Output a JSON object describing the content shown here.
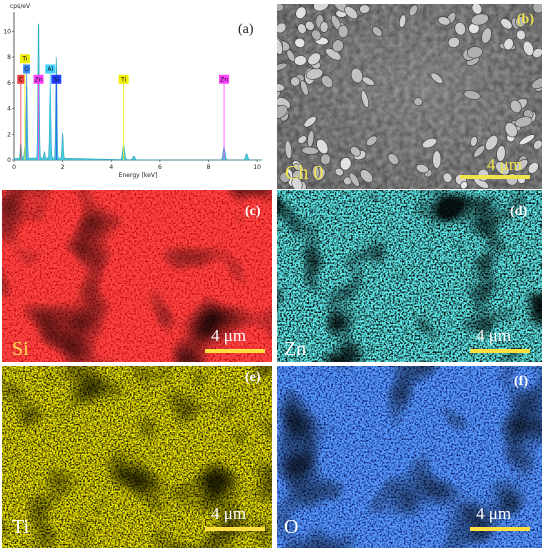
{
  "panel_a": {
    "label": "(a)",
    "y_axis_label": "cps/eV",
    "x_axis_label": "Energy [keV]",
    "colors": {
      "spectrum_fill": "#3fc3d6",
      "spectrum_line": "#2aa7bd"
    }
  },
  "chart_data": {
    "type": "line",
    "xlim": [
      0,
      10.2
    ],
    "ylim": [
      0,
      11.5
    ],
    "x_ticks": [
      "0",
      "2",
      "4",
      "6",
      "8",
      "10"
    ],
    "y_ticks": [
      "0",
      "2",
      "4",
      "6",
      "8",
      "10"
    ],
    "xlabel": "Energy [keV]",
    "ylabel": "cps/eV",
    "peaks": [
      {
        "x": 0.28,
        "y": 1.2
      },
      {
        "x": 0.45,
        "y": 0.9
      },
      {
        "x": 0.52,
        "y": 6.0
      },
      {
        "x": 1.01,
        "y": 11.3
      },
      {
        "x": 1.25,
        "y": 0.5
      },
      {
        "x": 1.49,
        "y": 5.8
      },
      {
        "x": 1.74,
        "y": 8.1
      },
      {
        "x": 2.0,
        "y": 2.0
      },
      {
        "x": 4.51,
        "y": 1.1
      },
      {
        "x": 4.93,
        "y": 0.3
      },
      {
        "x": 8.64,
        "y": 1.0
      },
      {
        "x": 9.57,
        "y": 0.5
      }
    ],
    "element_tags": [
      {
        "text": "C",
        "x": 0.28,
        "line_y": 6.0,
        "color": "#f04040"
      },
      {
        "text": "Ti",
        "x": 0.45,
        "line_y": 7.6,
        "color": "#f0f000"
      },
      {
        "text": "O",
        "x": 0.52,
        "line_y": 6.8,
        "color": "#3a8cff"
      },
      {
        "text": "Zn",
        "x": 1.01,
        "line_y": 6.0,
        "color": "#ff40ff"
      },
      {
        "text": "Al",
        "x": 1.49,
        "line_y": 6.8,
        "color": "#40d0ff"
      },
      {
        "text": "Si",
        "x": 1.74,
        "line_y": 6.0,
        "color": "#2040ff"
      },
      {
        "text": "Ti",
        "x": 4.51,
        "line_y": 6.0,
        "color": "#f0f000"
      },
      {
        "text": "Zn",
        "x": 8.64,
        "line_y": 6.0,
        "color": "#ff40ff"
      }
    ]
  },
  "panel_b": {
    "label": "(b)",
    "channel": "Ch 0",
    "scale": "4 μm",
    "label_color": "#f2e24a"
  },
  "panel_c": {
    "label": "(c)",
    "element": "Si",
    "scale": "4 μm",
    "color": "#ff1010"
  },
  "panel_d": {
    "label": "(d)",
    "element": "Zn",
    "scale": "4 μm",
    "color": "#20d8d8"
  },
  "panel_e": {
    "label": "(e)",
    "element": "Ti",
    "scale": "4 μm",
    "color": "#e0d000"
  },
  "panel_f": {
    "label": "(f)",
    "element": "O",
    "scale": "4 μm",
    "color": "#1a55ff"
  }
}
